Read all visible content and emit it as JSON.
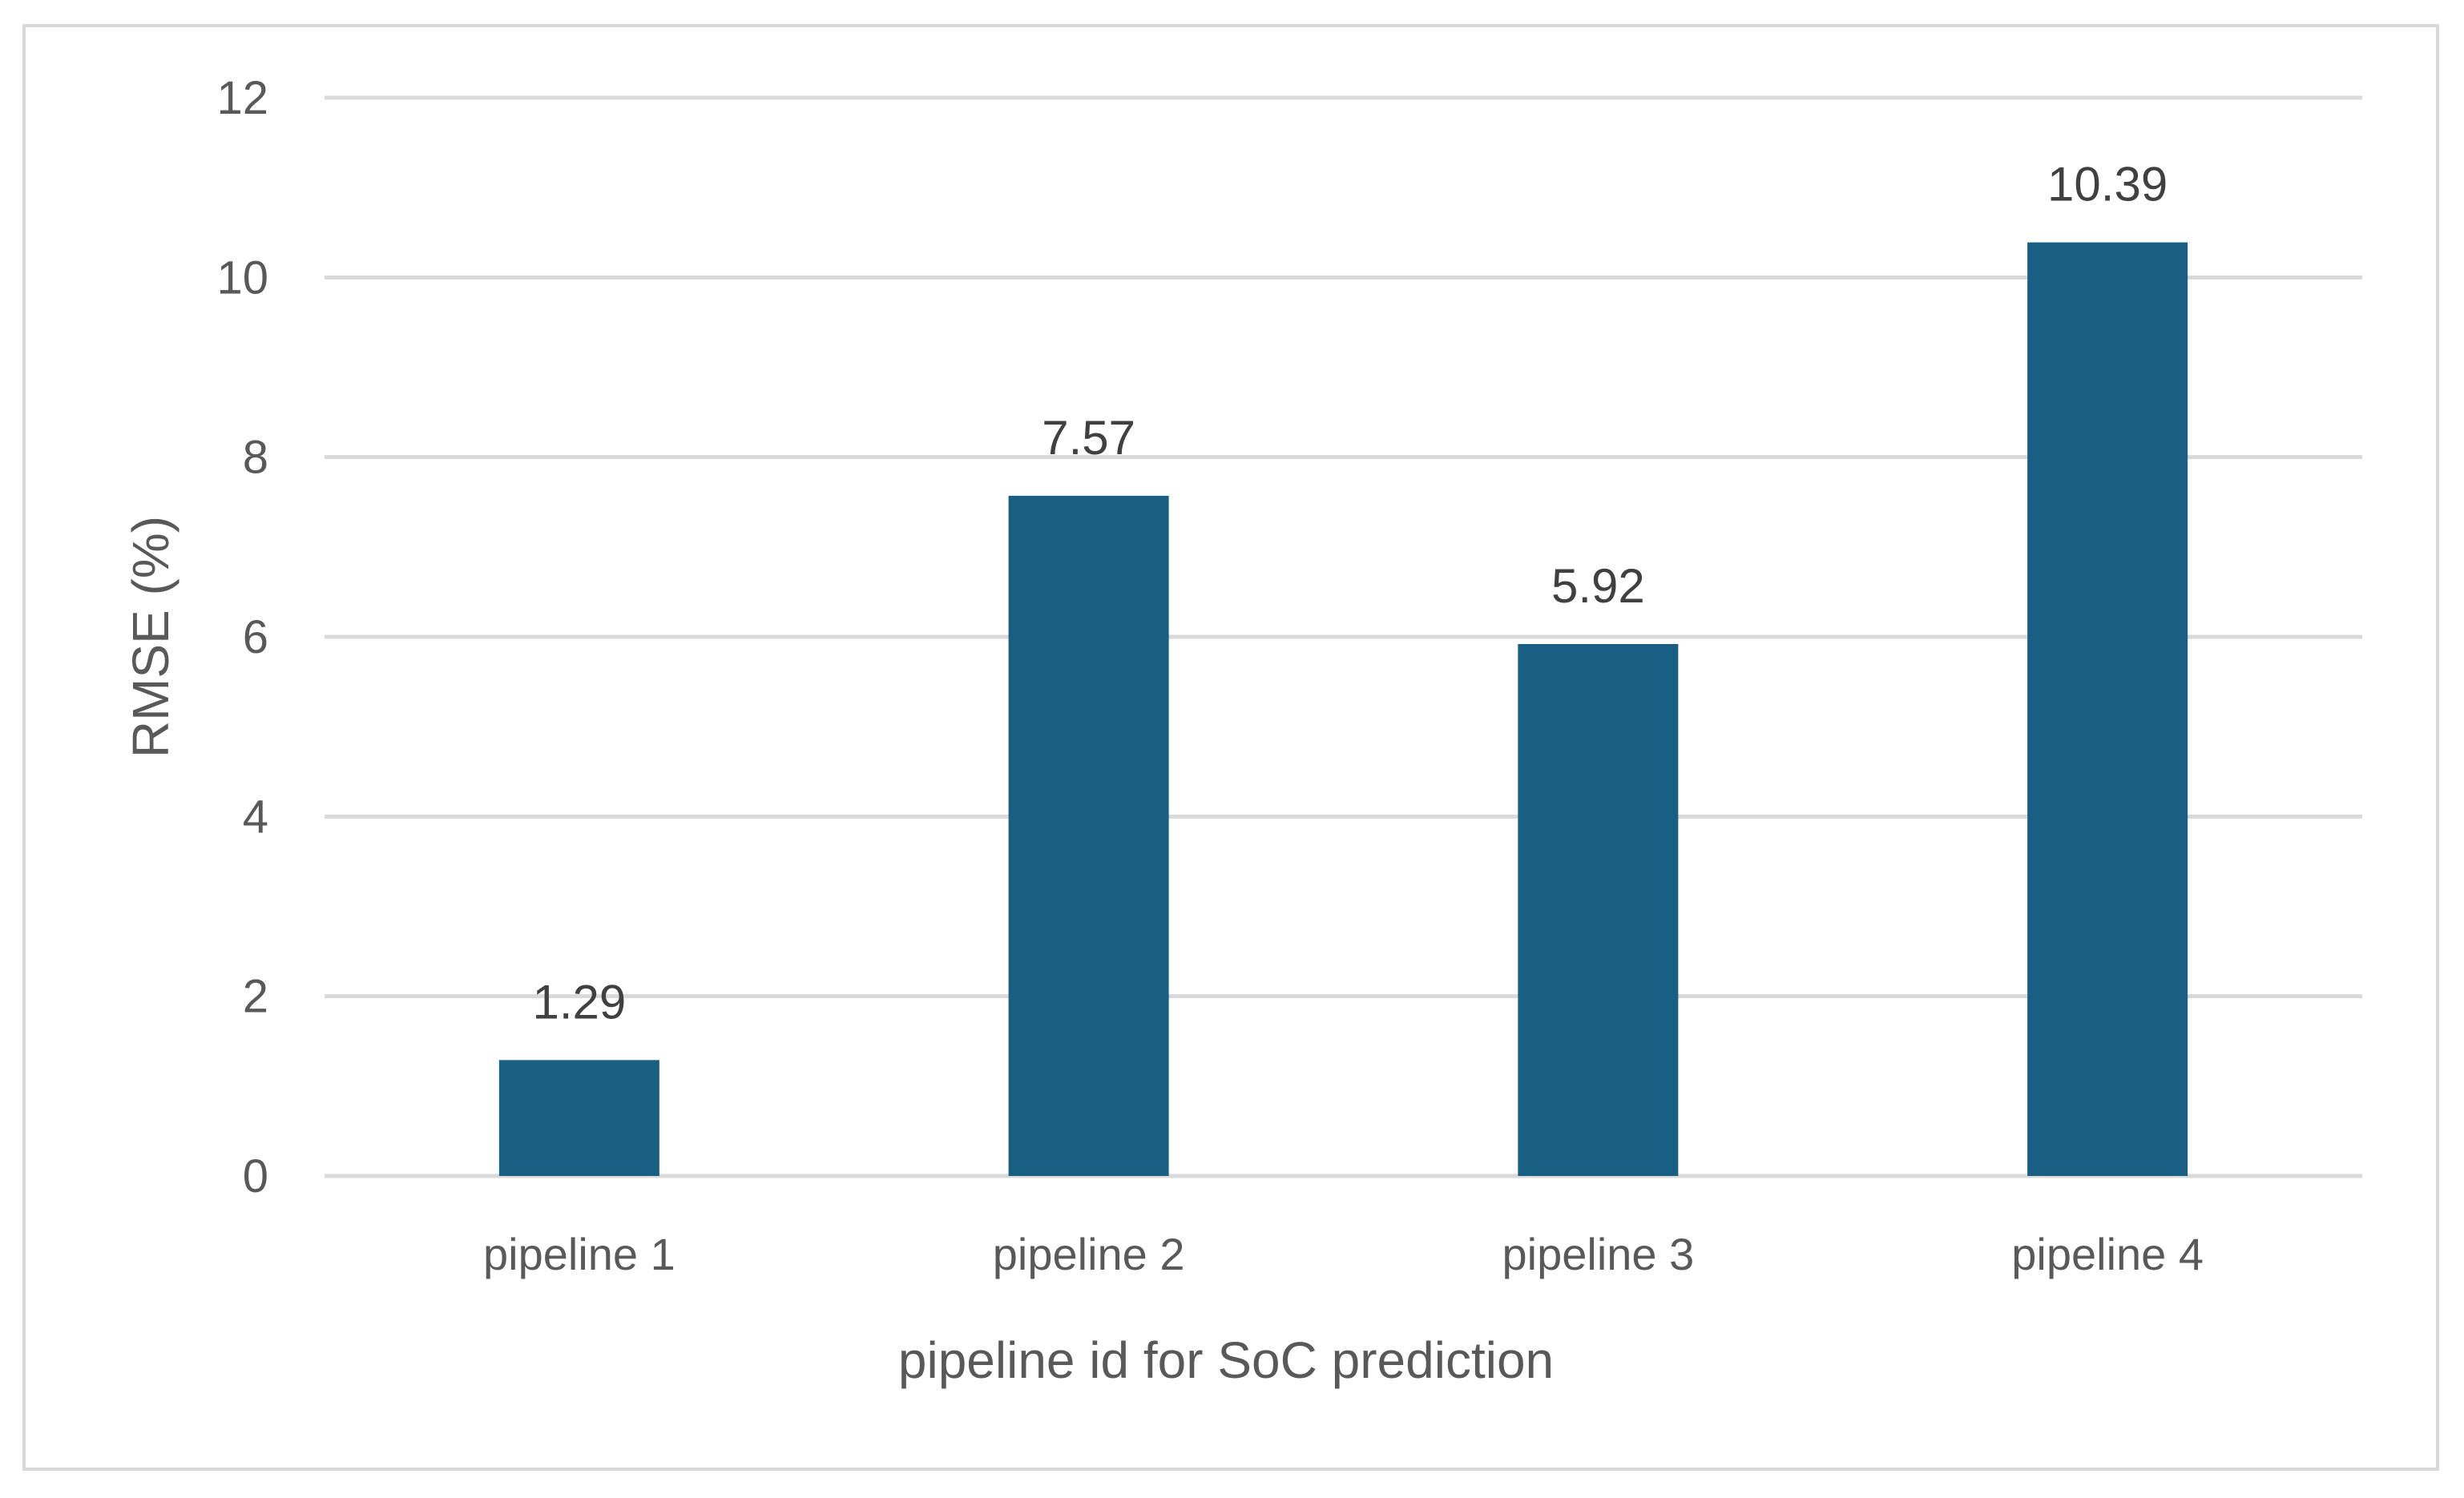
{
  "chart_data": {
    "type": "bar",
    "categories": [
      "pipeline 1",
      "pipeline 2",
      "pipeline 3",
      "pipeline 4"
    ],
    "values": [
      1.29,
      7.57,
      5.92,
      10.39
    ],
    "data_labels": [
      "1.29",
      "7.57",
      "5.92",
      "10.39"
    ],
    "title": "",
    "xlabel": "pipeline id for SoC prediction",
    "ylabel": "RMSE (%)",
    "ylim": [
      0,
      12
    ],
    "yticks": [
      0,
      2,
      4,
      6,
      8,
      10,
      12
    ],
    "grid": true,
    "legend": "none",
    "bar_color": "#185f83",
    "grid_color": "#d9d9d9"
  }
}
